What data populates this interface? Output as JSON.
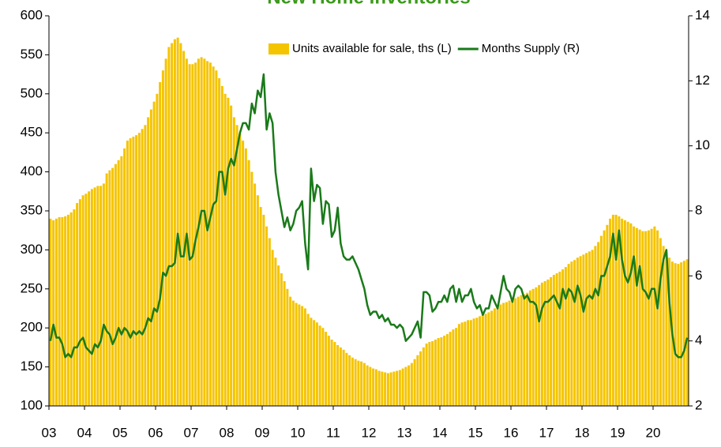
{
  "chart_data": {
    "type": "bar",
    "title": "New Home Inventories",
    "categories": [
      "03",
      null,
      null,
      null,
      null,
      null,
      null,
      null,
      null,
      null,
      null,
      null,
      "04",
      null,
      null,
      null,
      null,
      null,
      null,
      null,
      null,
      null,
      null,
      null,
      "05",
      null,
      null,
      null,
      null,
      null,
      null,
      null,
      null,
      null,
      null,
      null,
      "06",
      null,
      null,
      null,
      null,
      null,
      null,
      null,
      null,
      null,
      null,
      null,
      "07",
      null,
      null,
      null,
      null,
      null,
      null,
      null,
      null,
      null,
      null,
      null,
      "08",
      null,
      null,
      null,
      null,
      null,
      null,
      null,
      null,
      null,
      null,
      null,
      "09",
      null,
      null,
      null,
      null,
      null,
      null,
      null,
      null,
      null,
      null,
      null,
      "10",
      null,
      null,
      null,
      null,
      null,
      null,
      null,
      null,
      null,
      null,
      null,
      "11",
      null,
      null,
      null,
      null,
      null,
      null,
      null,
      null,
      null,
      null,
      null,
      "12",
      null,
      null,
      null,
      null,
      null,
      null,
      null,
      null,
      null,
      null,
      null,
      "13",
      null,
      null,
      null,
      null,
      null,
      null,
      null,
      null,
      null,
      null,
      null,
      "14",
      null,
      null,
      null,
      null,
      null,
      null,
      null,
      null,
      null,
      null,
      null,
      "15",
      null,
      null,
      null,
      null,
      null,
      null,
      null,
      null,
      null,
      null,
      null,
      "16",
      null,
      null,
      null,
      null,
      null,
      null,
      null,
      null,
      null,
      null,
      null,
      "17",
      null,
      null,
      null,
      null,
      null,
      null,
      null,
      null,
      null,
      null,
      null,
      "18",
      null,
      null,
      null,
      null,
      null,
      null,
      null,
      null,
      null,
      null,
      null,
      "19",
      null,
      null,
      null,
      null,
      null,
      null,
      null,
      null,
      null,
      null,
      null,
      "20",
      null,
      null,
      null,
      null,
      null,
      null,
      null,
      null,
      null,
      null,
      null
    ],
    "series": [
      {
        "name": "Units available for sale, ths (L)",
        "type": "bar",
        "color": "#f5c400",
        "values": [
          340,
          338,
          340,
          342,
          342,
          343,
          345,
          348,
          352,
          360,
          365,
          370,
          372,
          375,
          378,
          380,
          382,
          382,
          385,
          398,
          402,
          405,
          410,
          415,
          420,
          430,
          440,
          443,
          445,
          447,
          450,
          455,
          460,
          470,
          480,
          490,
          500,
          515,
          530,
          545,
          560,
          565,
          570,
          572,
          565,
          555,
          545,
          538,
          538,
          540,
          545,
          547,
          545,
          542,
          540,
          535,
          530,
          520,
          510,
          500,
          495,
          485,
          470,
          460,
          450,
          440,
          430,
          415,
          400,
          385,
          370,
          355,
          345,
          330,
          315,
          300,
          290,
          280,
          270,
          260,
          250,
          240,
          235,
          232,
          230,
          228,
          225,
          218,
          213,
          210,
          207,
          203,
          200,
          195,
          190,
          185,
          182,
          178,
          175,
          172,
          168,
          165,
          162,
          160,
          158,
          157,
          155,
          152,
          150,
          148,
          147,
          145,
          144,
          143,
          142,
          143,
          144,
          145,
          146,
          148,
          150,
          152,
          155,
          160,
          165,
          170,
          175,
          180,
          182,
          183,
          185,
          187,
          188,
          190,
          192,
          195,
          198,
          200,
          205,
          207,
          208,
          210,
          210,
          212,
          213,
          215,
          217,
          218,
          220,
          222,
          225,
          228,
          230,
          232,
          233,
          235,
          237,
          238,
          240,
          242,
          243,
          245,
          248,
          250,
          252,
          255,
          258,
          260,
          262,
          265,
          268,
          270,
          272,
          275,
          278,
          282,
          285,
          287,
          290,
          292,
          294,
          296,
          298,
          300,
          305,
          310,
          318,
          325,
          332,
          340,
          345,
          345,
          343,
          340,
          338,
          336,
          334,
          330,
          328,
          326,
          324,
          324,
          325,
          327,
          330,
          325,
          315,
          305,
          295,
          290,
          285,
          283,
          282,
          284,
          286,
          288
        ]
      },
      {
        "name": "Months Supply (R)",
        "type": "line",
        "axis": "y2",
        "color": "#1a7a1a",
        "values": [
          4.0,
          4.5,
          4.1,
          4.1,
          3.9,
          3.5,
          3.6,
          3.5,
          3.8,
          3.8,
          4.0,
          4.1,
          3.8,
          3.7,
          3.6,
          3.9,
          3.8,
          4.0,
          4.5,
          4.3,
          4.2,
          3.9,
          4.1,
          4.4,
          4.2,
          4.4,
          4.3,
          4.1,
          4.3,
          4.2,
          4.3,
          4.2,
          4.4,
          4.7,
          4.6,
          5.0,
          4.9,
          5.3,
          6.1,
          6.0,
          6.3,
          6.3,
          6.4,
          7.3,
          6.6,
          6.6,
          7.3,
          6.5,
          6.6,
          7.1,
          7.5,
          8.0,
          8.0,
          7.4,
          7.8,
          8.2,
          8.3,
          9.2,
          9.2,
          8.5,
          9.3,
          9.6,
          9.4,
          9.9,
          10.4,
          10.7,
          10.7,
          10.5,
          11.3,
          11.0,
          11.7,
          11.5,
          12.2,
          10.5,
          11.0,
          10.7,
          9.2,
          8.5,
          8.0,
          7.5,
          7.8,
          7.4,
          7.6,
          8.0,
          8.1,
          8.3,
          7.0,
          6.2,
          9.3,
          8.3,
          8.8,
          8.7,
          7.6,
          8.3,
          8.2,
          7.2,
          7.4,
          8.1,
          7.0,
          6.6,
          6.5,
          6.5,
          6.6,
          6.4,
          6.2,
          5.9,
          5.6,
          5.1,
          4.8,
          4.9,
          4.9,
          4.7,
          4.8,
          4.6,
          4.7,
          4.5,
          4.5,
          4.4,
          4.5,
          4.4,
          4.0,
          4.1,
          4.2,
          4.4,
          4.6,
          4.1,
          5.5,
          5.5,
          5.4,
          4.9,
          5.0,
          5.2,
          5.2,
          5.4,
          5.2,
          5.6,
          5.7,
          5.2,
          5.6,
          5.2,
          5.4,
          5.4,
          5.6,
          5.2,
          5.0,
          5.1,
          4.8,
          5.0,
          5.0,
          5.4,
          5.2,
          5.0,
          5.5,
          6.0,
          5.6,
          5.5,
          5.2,
          5.6,
          5.7,
          5.6,
          5.3,
          5.4,
          5.2,
          5.2,
          5.1,
          4.6,
          5.0,
          5.2,
          5.2,
          5.3,
          5.4,
          5.2,
          5.0,
          5.6,
          5.3,
          5.6,
          5.5,
          5.2,
          5.7,
          5.4,
          4.9,
          5.3,
          5.4,
          5.3,
          5.6,
          5.4,
          6.0,
          6.0,
          6.3,
          6.6,
          7.3,
          6.5,
          7.4,
          6.5,
          6.0,
          5.8,
          6.1,
          6.6,
          5.7,
          6.3,
          5.6,
          5.5,
          5.3,
          5.6,
          5.6,
          5.0,
          5.9,
          6.5,
          6.8,
          5.2,
          4.2,
          3.6,
          3.5,
          3.5,
          3.7,
          4.1
        ]
      }
    ],
    "ylim": [
      100,
      600
    ],
    "yticks": [
      100,
      150,
      200,
      250,
      300,
      350,
      400,
      450,
      500,
      550,
      600
    ],
    "y2lim": [
      2,
      14
    ],
    "y2ticks": [
      2,
      4,
      6,
      8,
      10,
      12,
      14
    ]
  }
}
